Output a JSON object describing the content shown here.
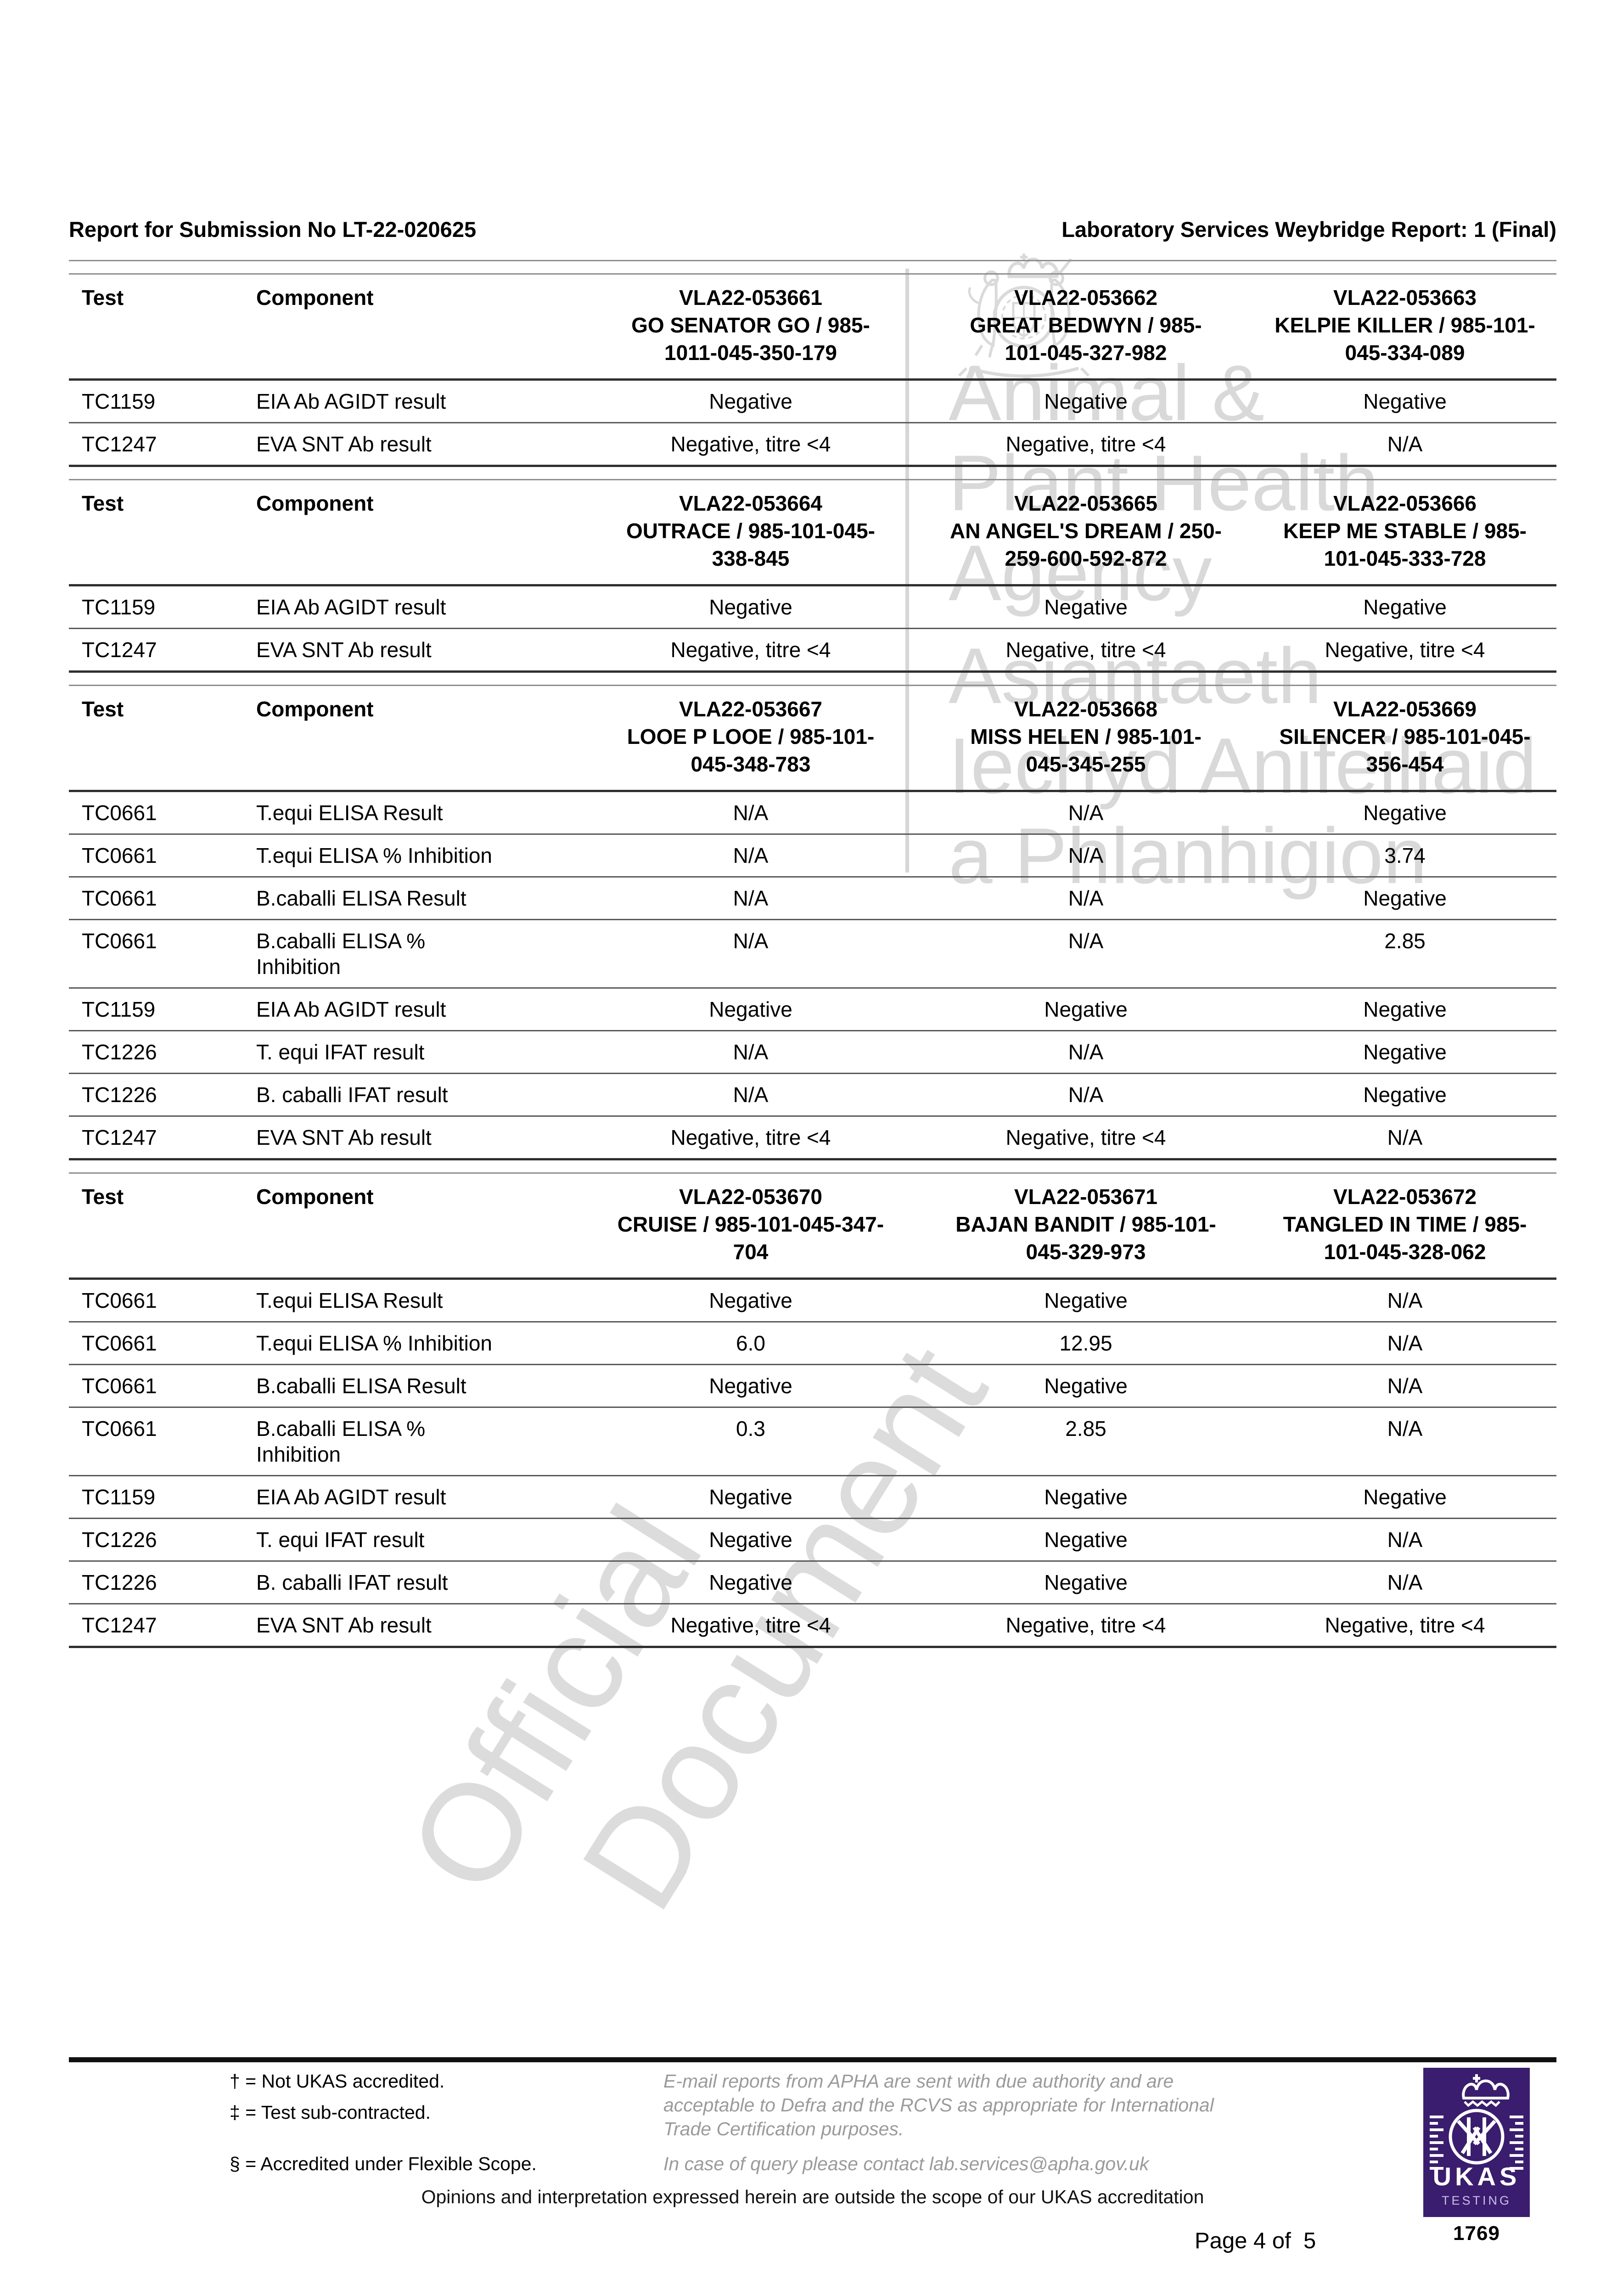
{
  "page": {
    "header_left": "Report for Submission No LT-22-020625",
    "header_right": "Laboratory Services Weybridge Report: 1 (Final)",
    "page_label": "Page 4 of  5"
  },
  "table_headers": {
    "test": "Test",
    "component": "Component"
  },
  "tables": [
    {
      "samples": [
        "VLA22-053661\nGO SENATOR GO / 985-\n1011-045-350-179",
        "VLA22-053662\nGREAT BEDWYN / 985-\n101-045-327-982",
        "VLA22-053663\nKELPIE KILLER / 985-101-\n045-334-089"
      ],
      "rows": [
        {
          "test": "TC1159",
          "component": "EIA Ab AGIDT result",
          "values": [
            "Negative",
            "Negative",
            "Negative"
          ]
        },
        {
          "test": "TC1247",
          "component": "EVA SNT Ab result",
          "values": [
            "Negative, titre <4",
            "Negative, titre <4",
            "N/A"
          ]
        }
      ]
    },
    {
      "samples": [
        "VLA22-053664\nOUTRACE / 985-101-045-\n338-845",
        "VLA22-053665\nAN ANGEL'S DREAM / 250-\n259-600-592-872",
        "VLA22-053666\nKEEP ME STABLE / 985-\n101-045-333-728"
      ],
      "rows": [
        {
          "test": "TC1159",
          "component": "EIA Ab AGIDT result",
          "values": [
            "Negative",
            "Negative",
            "Negative"
          ]
        },
        {
          "test": "TC1247",
          "component": "EVA SNT Ab result",
          "values": [
            "Negative, titre <4",
            "Negative, titre <4",
            "Negative, titre <4"
          ]
        }
      ]
    },
    {
      "samples": [
        "VLA22-053667\nLOOE P LOOE / 985-101-\n045-348-783",
        "VLA22-053668\nMISS HELEN / 985-101-\n045-345-255",
        "VLA22-053669\nSILENCER / 985-101-045-\n356-454"
      ],
      "rows": [
        {
          "test": "TC0661",
          "component": "T.equi ELISA Result",
          "values": [
            "N/A",
            "N/A",
            "Negative"
          ]
        },
        {
          "test": "TC0661",
          "component": "T.equi ELISA % Inhibition",
          "values": [
            "N/A",
            "N/A",
            "3.74"
          ]
        },
        {
          "test": "TC0661",
          "component": "B.caballi ELISA Result",
          "values": [
            "N/A",
            "N/A",
            "Negative"
          ]
        },
        {
          "test": "TC0661",
          "component": "B.caballi ELISA %\nInhibition",
          "values": [
            "N/A",
            "N/A",
            "2.85"
          ]
        },
        {
          "test": "TC1159",
          "component": "EIA Ab AGIDT result",
          "values": [
            "Negative",
            "Negative",
            "Negative"
          ]
        },
        {
          "test": "TC1226",
          "component": "T. equi IFAT result",
          "values": [
            "N/A",
            "N/A",
            "Negative"
          ]
        },
        {
          "test": "TC1226",
          "component": "B. caballi IFAT result",
          "values": [
            "N/A",
            "N/A",
            "Negative"
          ]
        },
        {
          "test": "TC1247",
          "component": "EVA SNT Ab result",
          "values": [
            "Negative, titre <4",
            "Negative, titre <4",
            "N/A"
          ]
        }
      ]
    },
    {
      "samples": [
        "VLA22-053670\nCRUISE / 985-101-045-347-\n704",
        "VLA22-053671\nBAJAN BANDIT / 985-101-\n045-329-973",
        "VLA22-053672\nTANGLED IN TIME / 985-\n101-045-328-062"
      ],
      "rows": [
        {
          "test": "TC0661",
          "component": "T.equi ELISA Result",
          "values": [
            "Negative",
            "Negative",
            "N/A"
          ]
        },
        {
          "test": "TC0661",
          "component": "T.equi ELISA % Inhibition",
          "values": [
            "6.0",
            "12.95",
            "N/A"
          ]
        },
        {
          "test": "TC0661",
          "component": "B.caballi ELISA Result",
          "values": [
            "Negative",
            "Negative",
            "N/A"
          ]
        },
        {
          "test": "TC0661",
          "component": "B.caballi ELISA %\nInhibition",
          "values": [
            "0.3",
            "2.85",
            "N/A"
          ]
        },
        {
          "test": "TC1159",
          "component": "EIA Ab AGIDT result",
          "values": [
            "Negative",
            "Negative",
            "Negative"
          ]
        },
        {
          "test": "TC1226",
          "component": "T. equi IFAT result",
          "values": [
            "Negative",
            "Negative",
            "N/A"
          ]
        },
        {
          "test": "TC1226",
          "component": "B. caballi IFAT result",
          "values": [
            "Negative",
            "Negative",
            "N/A"
          ]
        },
        {
          "test": "TC1247",
          "component": "EVA SNT Ab result",
          "values": [
            "Negative, titre <4",
            "Negative, titre <4",
            "Negative, titre <4"
          ]
        }
      ]
    }
  ],
  "watermarks": {
    "apha_lines": [
      "Animal &",
      "Plant Health",
      "Agency",
      "Asiantaeth",
      "Iechyd Anifeiliaid",
      "a Phlanhigion"
    ],
    "diagonal_lines": [
      "Official",
      "Document"
    ]
  },
  "footer": {
    "symbols": [
      "† = Not UKAS accredited.",
      "‡ = Test sub-contracted.",
      "§ = Accredited under Flexible Scope."
    ],
    "email_note": "E-mail reports from APHA are sent with due authority and are\nacceptable to Defra and the RCVS as appropriate for International\nTrade Certification purposes.",
    "query_note": "In case of query please contact lab.services@apha.gov.uk",
    "opinions": "Opinions and interpretation expressed herein are outside the scope of our UKAS accreditation"
  },
  "ukas": {
    "label": "UKAS",
    "sublabel": "TESTING",
    "number": "1769",
    "purple": "#3A1D6E"
  }
}
